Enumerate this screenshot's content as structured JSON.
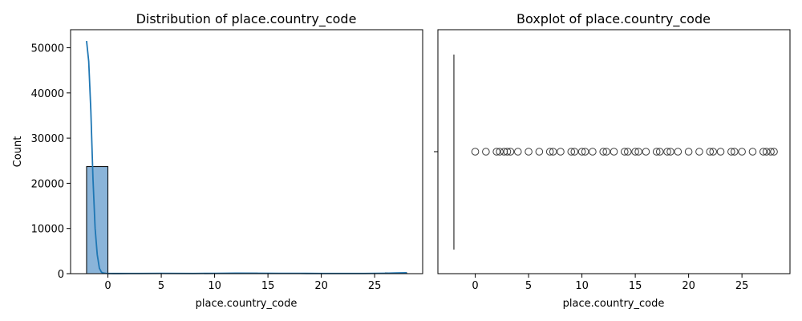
{
  "chart_data": [
    {
      "type": "histogram",
      "title": "Distribution of place.country_code",
      "xlabel": "place.country_code",
      "ylabel": "Count",
      "xlim": [
        -3.5,
        29.5
      ],
      "ylim": [
        0,
        54000
      ],
      "xticks": [
        0,
        5,
        10,
        15,
        20,
        25
      ],
      "yticks": [
        0,
        10000,
        20000,
        30000,
        40000,
        50000
      ],
      "bins": [
        {
          "x0": -2,
          "x1": 0,
          "count": 23700
        },
        {
          "x0": 0,
          "x1": 2,
          "count": 60
        },
        {
          "x0": 2,
          "x1": 4,
          "count": 80
        },
        {
          "x0": 4,
          "x1": 6,
          "count": 70
        },
        {
          "x0": 6,
          "x1": 8,
          "count": 60
        },
        {
          "x0": 8,
          "x1": 10,
          "count": 70
        },
        {
          "x0": 10,
          "x1": 12,
          "count": 80
        },
        {
          "x0": 12,
          "x1": 14,
          "count": 120
        },
        {
          "x0": 14,
          "x1": 16,
          "count": 90
        },
        {
          "x0": 16,
          "x1": 18,
          "count": 80
        },
        {
          "x0": 18,
          "x1": 20,
          "count": 60
        },
        {
          "x0": 20,
          "x1": 22,
          "count": 50
        },
        {
          "x0": 22,
          "x1": 24,
          "count": 40
        },
        {
          "x0": 24,
          "x1": 26,
          "count": 50
        },
        {
          "x0": 26,
          "x1": 28,
          "count": 180
        }
      ],
      "kde": {
        "x": [
          -2,
          -1.8,
          -1.6,
          -1.4,
          -1.2,
          -1.0,
          -0.8,
          -0.6,
          -0.4,
          -0.2,
          0,
          0.5,
          1,
          2,
          3,
          5,
          8,
          10,
          12,
          14,
          16,
          18,
          20,
          22,
          24,
          26,
          27,
          28
        ],
        "y": [
          51500,
          47000,
          36000,
          21000,
          10000,
          4200,
          1200,
          300,
          120,
          60,
          40,
          30,
          30,
          40,
          50,
          60,
          50,
          70,
          110,
          80,
          70,
          60,
          50,
          40,
          50,
          90,
          150,
          200
        ]
      },
      "colors": {
        "bar": "#8ab4d9",
        "kde": "#1f77b4"
      }
    },
    {
      "type": "boxplot",
      "title": "Boxplot of place.country_code",
      "xlabel": "place.country_code",
      "xlim": [
        -3.5,
        29.5
      ],
      "xticks": [
        0,
        5,
        10,
        15,
        20,
        25
      ],
      "box": {
        "q1": -2,
        "median": -2,
        "q3": -2,
        "whisker_low": -2,
        "whisker_high": -2
      },
      "outliers": [
        0,
        1,
        2,
        2.3,
        2.7,
        3,
        3.3,
        4,
        5,
        6,
        7,
        7.3,
        8,
        9,
        9.3,
        10,
        10.3,
        11,
        12,
        12.3,
        13,
        14,
        14.3,
        15,
        15.3,
        16,
        17,
        17.3,
        18,
        18.3,
        19,
        20,
        21,
        22,
        22.3,
        23,
        24,
        24.3,
        25,
        26,
        27,
        27.3,
        27.7,
        28
      ]
    }
  ]
}
